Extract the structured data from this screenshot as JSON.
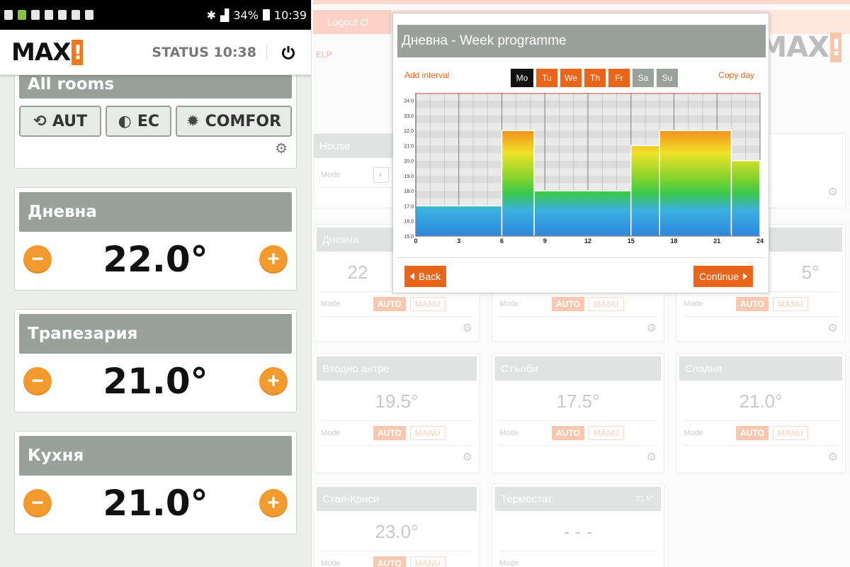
{
  "phone": {
    "status_bar": {
      "battery": "34%",
      "time": "10:39"
    },
    "app_bar": {
      "status_label": "STATUS 10:38"
    },
    "all_rooms": {
      "title": "All rooms",
      "modes": [
        {
          "icon": "auto-icon",
          "label": "AUT"
        },
        {
          "icon": "eco-icon",
          "label": "EC"
        },
        {
          "icon": "sun-icon",
          "label": "COMFOR"
        }
      ]
    },
    "rooms": [
      {
        "name": "Дневна",
        "temperature": "22.0°"
      },
      {
        "name": "Трапезария",
        "temperature": "21.0°"
      },
      {
        "name": "Кухня",
        "temperature": "21.0°"
      }
    ]
  },
  "web": {
    "logout_label": "Logout",
    "help_label": "ELP",
    "cards": [
      {
        "title": "House",
        "mode_label": "Mode"
      },
      {
        "title": "Дневна",
        "temperature": "22",
        "mode_label": "Mode",
        "auto": "AUTO",
        "manu": "MANU"
      },
      {
        "title": "",
        "temperature": "",
        "mode_label": "Mode",
        "auto": "AUTO",
        "manu": "MANU"
      },
      {
        "title": "",
        "temperature": "5°",
        "mode_label": "Mode",
        "auto": "AUTO",
        "manu": "MANU"
      },
      {
        "title": "Входно антре",
        "temperature": "19.5°",
        "mode_label": "Mode",
        "auto": "AUTO",
        "manu": "MANU"
      },
      {
        "title": "Стълби",
        "temperature": "17.5°",
        "mode_label": "Mode",
        "auto": "AUTO",
        "manu": "MANU"
      },
      {
        "title": "Спалня",
        "temperature": "21.0°",
        "mode_label": "Mode",
        "auto": "AUTO",
        "manu": "MANU"
      },
      {
        "title": "Стая-Криси",
        "temperature": "23.0°",
        "mode_label": "Mode",
        "auto": "AUTO",
        "manu": "MANU"
      },
      {
        "title": "Термостат",
        "title_value": "21.5°",
        "temperature": "- - -",
        "mode_label": "Mode"
      }
    ]
  },
  "modal": {
    "title": "Дневна - Week programme",
    "add_interval": "Add interval",
    "copy_day": "Copy day",
    "days": [
      {
        "label": "Mo",
        "state": "active"
      },
      {
        "label": "Tu",
        "state": "work"
      },
      {
        "label": "We",
        "state": "work"
      },
      {
        "label": "Th",
        "state": "work"
      },
      {
        "label": "Fr",
        "state": "work"
      },
      {
        "label": "Sa",
        "state": "weekend"
      },
      {
        "label": "Su",
        "state": "weekend"
      }
    ],
    "back_label": "Back",
    "continue_label": "Continue"
  },
  "chart_data": {
    "type": "bar",
    "title": "",
    "x_ticks": [
      "0",
      "3",
      "6",
      "9",
      "12",
      "15",
      "18",
      "21",
      "24"
    ],
    "y_ticks": [
      "15.0",
      "16.0",
      "17.0",
      "18.0",
      "19.0",
      "20.0",
      "21.0",
      "22.0",
      "23.0",
      "24.0"
    ],
    "xlim": [
      0,
      24
    ],
    "ylim": [
      15,
      24.5
    ],
    "intervals": [
      {
        "start": 0,
        "end": 6,
        "value": 17.0
      },
      {
        "start": 6,
        "end": 8.25,
        "value": 22.0
      },
      {
        "start": 8.25,
        "end": 15,
        "value": 18.0
      },
      {
        "start": 15,
        "end": 17,
        "value": 21.0
      },
      {
        "start": 17,
        "end": 22,
        "value": 22.0
      },
      {
        "start": 22,
        "end": 25,
        "value": 20.0
      }
    ]
  }
}
